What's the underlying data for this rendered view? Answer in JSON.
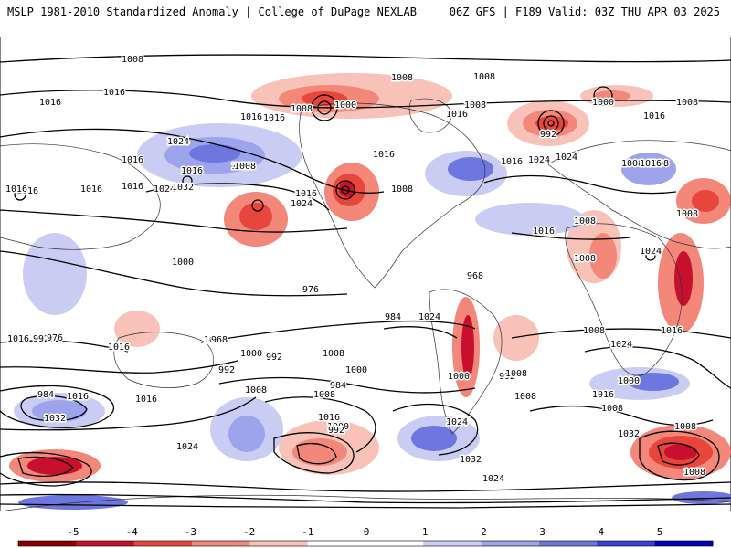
{
  "header": {
    "title": "MSLP 1981-2010 Standardized Anomaly | College of DuPage NEXLAB",
    "run_info": "06Z GFS | F189 Valid: 03Z THU APR 03 2025"
  },
  "colors": {
    "neg5": "#8b0000",
    "neg4": "#c8102e",
    "neg3": "#e8463c",
    "neg2": "#f2877a",
    "neg1": "#f9c2b8",
    "zero": "#ffffff",
    "pos1": "#c9cdf3",
    "pos2": "#9ea4eb",
    "pos3": "#6e76e0",
    "pos4": "#3a3fd0",
    "pos5": "#0000b8",
    "land_border": "#333333",
    "contour": "#000000"
  },
  "colorbar": {
    "labels": [
      "-5",
      "-4",
      "-3",
      "-2",
      "-1",
      "0",
      "1",
      "2",
      "3",
      "4",
      "5"
    ]
  },
  "contour_labels": [
    "1016",
    "1016",
    "1016",
    "1016",
    "1016",
    "1024",
    "1016",
    "1032",
    "1016",
    "1016",
    "1024",
    "1016",
    "1008",
    "1000",
    "1016",
    "1008",
    "1008",
    "1008",
    "1016",
    "1000",
    "1008",
    "992",
    "1016",
    "1024",
    "1016",
    "1024",
    "1016",
    "1008",
    "1024",
    "1008",
    "1008",
    "1016",
    "1008",
    "1008",
    "1016",
    "1008",
    "1024",
    "1016",
    "1008",
    "1016",
    "1032",
    "1024",
    "1016",
    "1000",
    "992",
    "1000",
    "976",
    "968",
    "1008",
    "1016",
    "1016",
    "992",
    "1008",
    "1000",
    "984",
    "968",
    "976",
    "1032",
    "984",
    "1016",
    "1000",
    "992",
    "984",
    "1008",
    "1024",
    "1000",
    "1008",
    "1016",
    "1000",
    "992",
    "1024",
    "1008",
    "1000",
    "992",
    "1016",
    "1024",
    "1032",
    "1024",
    "1008",
    "1016",
    "1008",
    "1032",
    "1008",
    "1008",
    "1008"
  ]
}
